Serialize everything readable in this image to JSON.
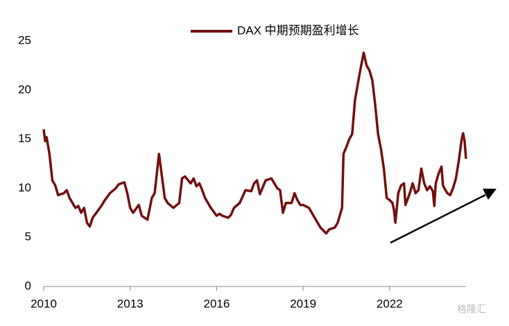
{
  "chart_data": {
    "type": "line",
    "x": [
      2010.0,
      2010.05,
      2010.1,
      2010.2,
      2010.3,
      2010.4,
      2010.5,
      2010.7,
      2010.8,
      2010.9,
      2011.0,
      2011.1,
      2011.2,
      2011.3,
      2011.4,
      2011.5,
      2011.6,
      2011.7,
      2011.9,
      2012.0,
      2012.1,
      2012.3,
      2012.5,
      2012.6,
      2012.8,
      2012.9,
      2013.0,
      2013.1,
      2013.3,
      2013.4,
      2013.6,
      2013.75,
      2013.85,
      2014.0,
      2014.2,
      2014.3,
      2014.5,
      2014.7,
      2014.8,
      2014.9,
      2015.1,
      2015.2,
      2015.3,
      2015.4,
      2015.5,
      2015.6,
      2015.8,
      2016.0,
      2016.1,
      2016.2,
      2016.4,
      2016.5,
      2016.6,
      2016.8,
      2017.0,
      2017.2,
      2017.3,
      2017.4,
      2017.5,
      2017.7,
      2017.9,
      2018.0,
      2018.1,
      2018.2,
      2018.3,
      2018.4,
      2018.6,
      2018.7,
      2018.8,
      2018.9,
      2019.0,
      2019.2,
      2019.3,
      2019.4,
      2019.5,
      2019.6,
      2019.8,
      2019.9,
      2020.1,
      2020.2,
      2020.3,
      2020.35,
      2020.4,
      2020.5,
      2020.6,
      2020.7,
      2020.8,
      2020.95,
      2021.1,
      2021.2,
      2021.3,
      2021.4,
      2021.5,
      2021.6,
      2021.7,
      2021.8,
      2021.9,
      2022.0,
      2022.1,
      2022.15,
      2022.2,
      2022.3,
      2022.4,
      2022.5,
      2022.55,
      2022.7,
      2022.8,
      2022.9,
      2023.0,
      2023.1,
      2023.2,
      2023.3,
      2023.4,
      2023.5,
      2023.55,
      2023.6,
      2023.7,
      2023.8,
      2023.85,
      2023.9,
      2024.0,
      2024.1,
      2024.2,
      2024.3,
      2024.4,
      2024.5,
      2024.55,
      2024.6,
      2024.65
    ],
    "series": [
      {
        "name": "DAX 中期预期盈利增长",
        "color": "#730f0f",
        "values": [
          16.0,
          14.8,
          15.2,
          13.5,
          10.8,
          10.3,
          9.3,
          9.5,
          9.8,
          9.0,
          8.5,
          8.0,
          8.2,
          7.5,
          8.0,
          6.5,
          6.1,
          7.0,
          7.8,
          8.2,
          8.7,
          9.5,
          10.0,
          10.4,
          10.6,
          9.5,
          8.0,
          7.5,
          8.3,
          7.2,
          6.8,
          9.0,
          9.5,
          13.5,
          9.0,
          8.5,
          8.0,
          8.5,
          11.0,
          11.2,
          10.5,
          11.0,
          10.2,
          10.5,
          9.8,
          9.0,
          8.0,
          7.2,
          7.4,
          7.2,
          7.0,
          7.3,
          8.0,
          8.5,
          9.8,
          9.7,
          10.5,
          10.8,
          9.4,
          10.8,
          11.0,
          10.5,
          10.0,
          9.8,
          7.5,
          8.5,
          8.5,
          9.5,
          8.8,
          8.3,
          8.3,
          8.0,
          7.5,
          7.0,
          6.5,
          6.0,
          5.4,
          5.8,
          6.0,
          6.5,
          7.5,
          8.0,
          13.5,
          14.2,
          15.0,
          15.5,
          19.0,
          21.5,
          23.8,
          22.5,
          22.0,
          21.0,
          18.5,
          15.5,
          14.0,
          12.0,
          9.0,
          8.8,
          8.5,
          7.8,
          6.5,
          9.5,
          10.3,
          10.5,
          8.3,
          9.5,
          10.5,
          9.5,
          9.8,
          12.0,
          10.5,
          9.8,
          10.2,
          9.7,
          8.2,
          10.5,
          11.5,
          12.2,
          10.3,
          10.0,
          9.5,
          9.3,
          10.0,
          11.0,
          12.8,
          15.0,
          15.6,
          14.8,
          13.0
        ]
      }
    ],
    "xlim": [
      2010,
      2024.65
    ],
    "xticks": [
      2010,
      2013,
      2016,
      2019,
      2022
    ],
    "ylim": [
      0,
      25
    ],
    "yticks": [
      0,
      5,
      10,
      15,
      20,
      25
    ],
    "grid": false,
    "legend": "top",
    "watermark": "格隆汇"
  }
}
